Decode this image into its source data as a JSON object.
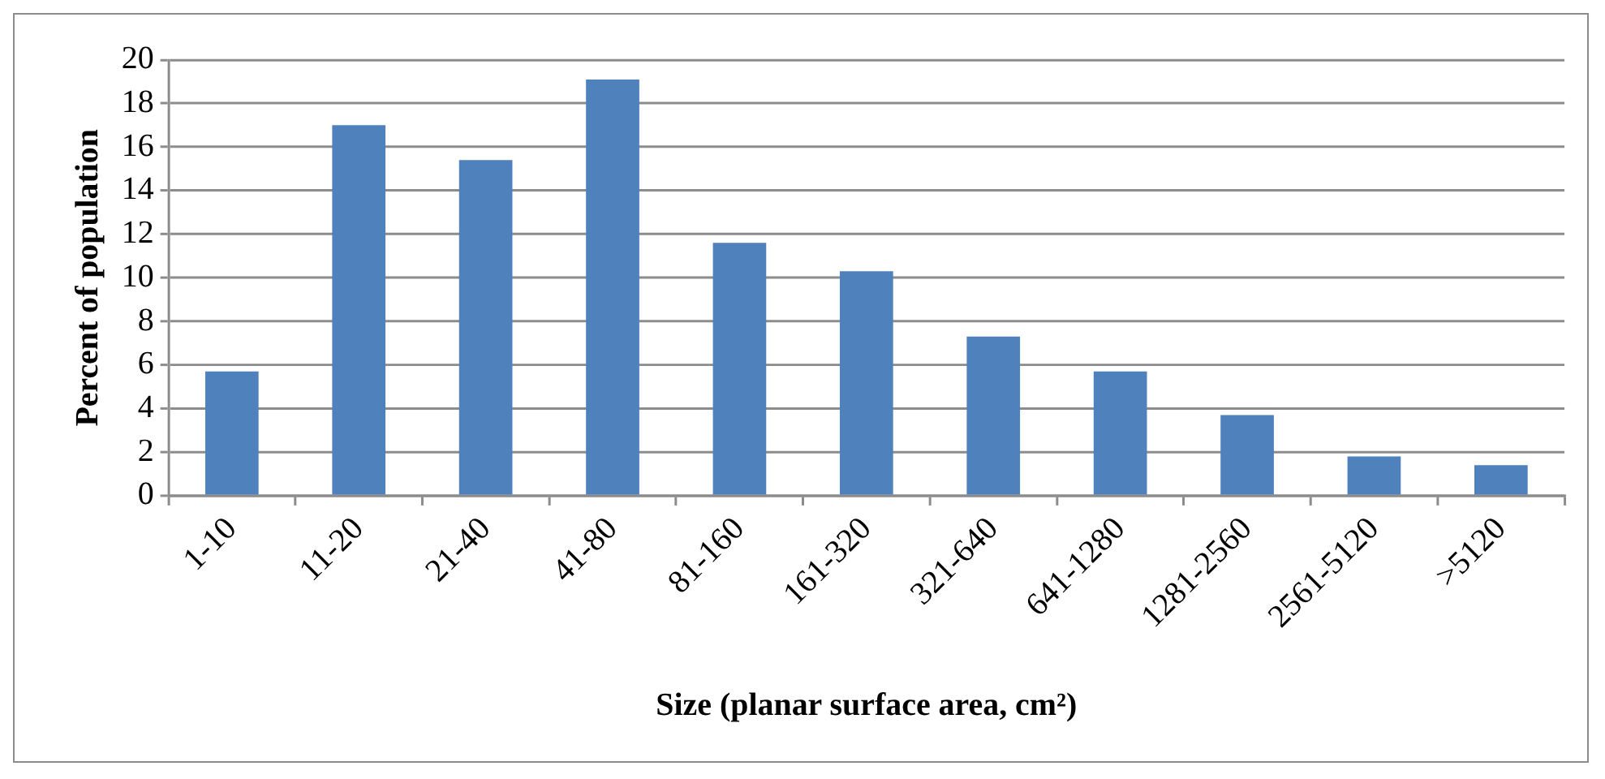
{
  "chart_data": {
    "type": "bar",
    "xlabel": "Size (planar surface area, cm²)",
    "ylabel": "Percent of population",
    "categories": [
      "1-10",
      "11-20",
      "21-40",
      "41-80",
      "81-160",
      "161-320",
      "321-640",
      "641-1280",
      "1281-2560",
      "2561-5120",
      ">5120"
    ],
    "values": [
      5.7,
      17.0,
      15.4,
      19.1,
      11.6,
      10.3,
      7.3,
      5.7,
      3.7,
      1.8,
      1.4
    ],
    "color": "#4f81bd",
    "ylim": [
      0,
      20
    ],
    "yticks": [
      0,
      2,
      4,
      6,
      8,
      10,
      12,
      14,
      16,
      18,
      20
    ],
    "grid": "y",
    "legend": false
  }
}
